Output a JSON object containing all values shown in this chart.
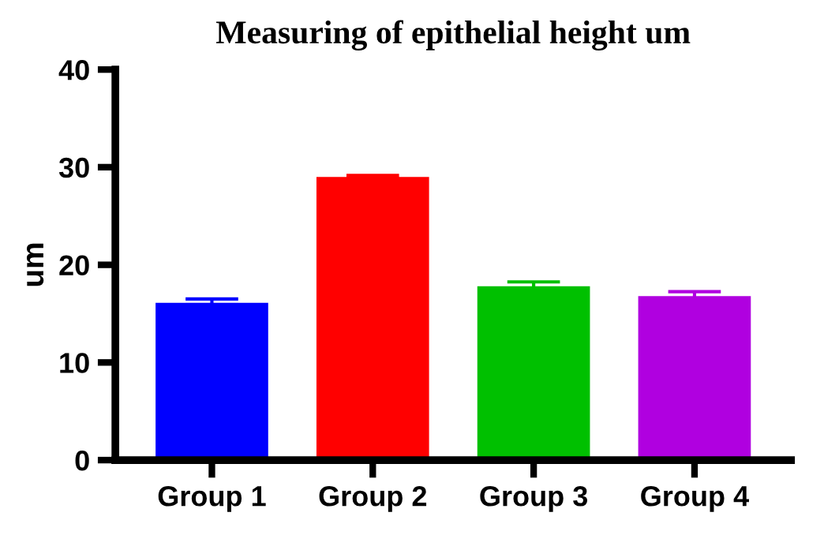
{
  "chart_data": {
    "type": "bar",
    "title": "Measuring of epithelial height um",
    "ylabel": "um",
    "categories": [
      "Group 1",
      "Group 2",
      "Group 3",
      "Group 4"
    ],
    "values": [
      16.1,
      29.0,
      17.8,
      16.8
    ],
    "errors": [
      0.4,
      0.15,
      0.45,
      0.45
    ],
    "colors": [
      "#0000ff",
      "#ff0000",
      "#00c000",
      "#b000e0"
    ],
    "ylim": [
      0,
      40
    ],
    "yticks": [
      0,
      10,
      20,
      30,
      40
    ],
    "grid": false,
    "legend": false
  }
}
